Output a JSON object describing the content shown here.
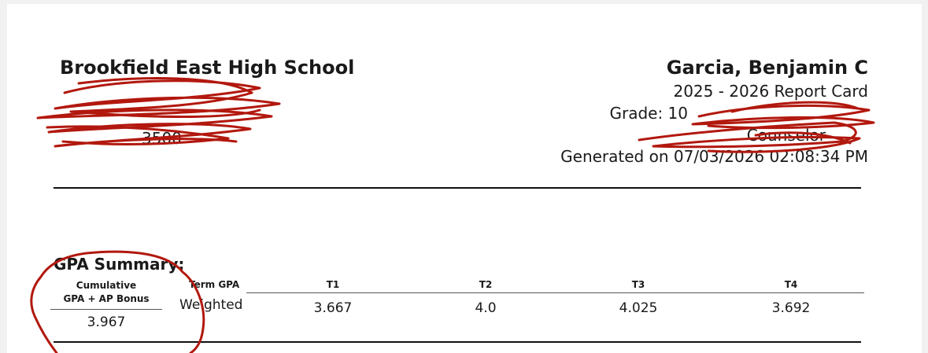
{
  "school": {
    "name": "Brookfield East High School",
    "phone_fragment": "3500"
  },
  "student": {
    "name": "Garcia, Benjamin C",
    "report_title": "2025 - 2026 Report Card",
    "grade": "Grade: 10",
    "counselor_label": "Counselor",
    "generated": "Generated on 07/03/2026 02:08:34 PM"
  },
  "gpa_summary": {
    "title": "GPA Summary:",
    "cumulative_header_line1": "Cumulative",
    "cumulative_header_line2": "GPA + AP Bonus",
    "cumulative_value": "3.967",
    "term_gpa_header": "Term GPA",
    "row_label": "Weighted",
    "terms": [
      {
        "label": "T1",
        "value": "3.667"
      },
      {
        "label": "T2",
        "value": "4.0"
      },
      {
        "label": "T3",
        "value": "4.025"
      },
      {
        "label": "T4",
        "value": "3.692"
      }
    ]
  },
  "annotation_color": "#b2180e"
}
